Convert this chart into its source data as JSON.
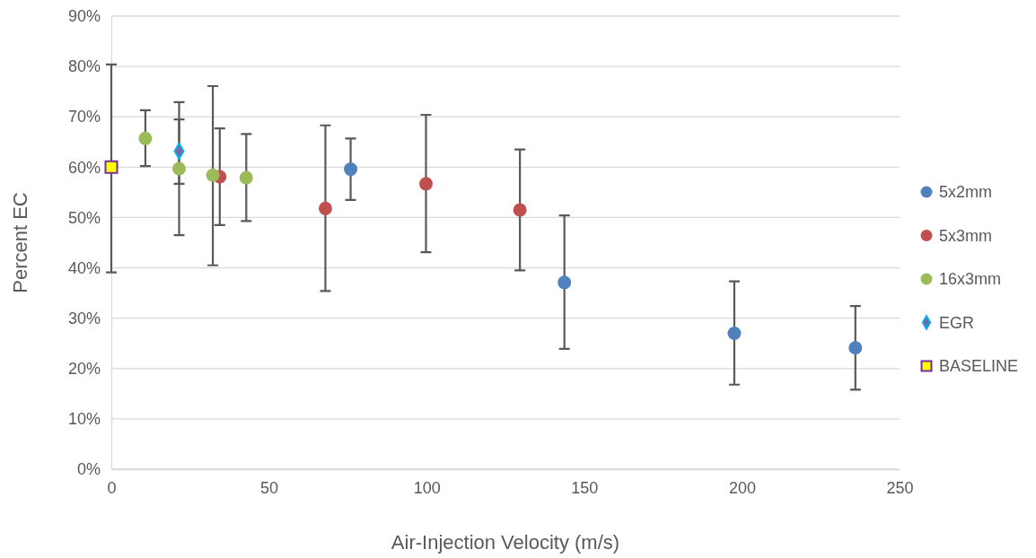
{
  "chart_data": {
    "type": "scatter",
    "xlabel": "Air-Injection Velocity (m/s)",
    "ylabel": "Percent EC",
    "xlim": [
      0,
      250
    ],
    "xticks": [
      0,
      50,
      100,
      150,
      200,
      250
    ],
    "ylim": [
      0,
      90
    ],
    "yticks": [
      {
        "value": 0,
        "label": "0%"
      },
      {
        "value": 10,
        "label": "10%"
      },
      {
        "value": 20,
        "label": "20%"
      },
      {
        "value": 30,
        "label": "30%"
      },
      {
        "value": 40,
        "label": "40%"
      },
      {
        "value": 50,
        "label": "50%"
      },
      {
        "value": 60,
        "label": "60%"
      },
      {
        "value": 70,
        "label": "70%"
      },
      {
        "value": 80,
        "label": "80%"
      },
      {
        "value": 90,
        "label": "90%"
      }
    ],
    "grid": "y",
    "legend": "right",
    "series": [
      {
        "name": "5x2mm",
        "color": "#4f81bd",
        "marker": "circle",
        "x": [
          75.9,
          143.7,
          197.6,
          236.0
        ],
        "values": [
          59.6,
          37.1,
          27.0,
          24.1
        ],
        "errors": [
          [
            53.5,
            65.7
          ],
          [
            23.9,
            50.4
          ],
          [
            16.8,
            37.3
          ],
          [
            15.8,
            32.4
          ]
        ]
      },
      {
        "name": "5x3mm",
        "color": "#c0504d",
        "marker": "circle",
        "x": [
          34.4,
          67.9,
          99.8,
          129.6
        ],
        "values": [
          58.1,
          51.8,
          56.7,
          51.5
        ],
        "errors": [
          [
            48.5,
            67.7
          ],
          [
            35.4,
            68.3
          ],
          [
            43.1,
            70.4
          ],
          [
            39.5,
            63.5
          ]
        ]
      },
      {
        "name": "16x3mm",
        "color": "#9bbb59",
        "marker": "circle",
        "x": [
          10.8,
          21.5,
          32.2,
          42.8
        ],
        "values": [
          65.7,
          59.7,
          58.4,
          57.9
        ],
        "errors": [
          [
            60.2,
            71.3
          ],
          [
            46.5,
            72.9
          ],
          [
            40.5,
            76.1
          ],
          [
            49.3,
            66.6
          ]
        ]
      },
      {
        "name": "EGR",
        "color": "#8064a2",
        "marker": "diamond",
        "x": [
          21.5
        ],
        "values": [
          63.2
        ],
        "errors": [
          [
            56.7,
            69.5
          ]
        ]
      },
      {
        "name": "BASELINE",
        "color": "#ffff00",
        "marker": "square",
        "x": [
          0
        ],
        "values": [
          60
        ],
        "errors": [
          [
            39.1,
            80.4
          ]
        ]
      }
    ]
  }
}
